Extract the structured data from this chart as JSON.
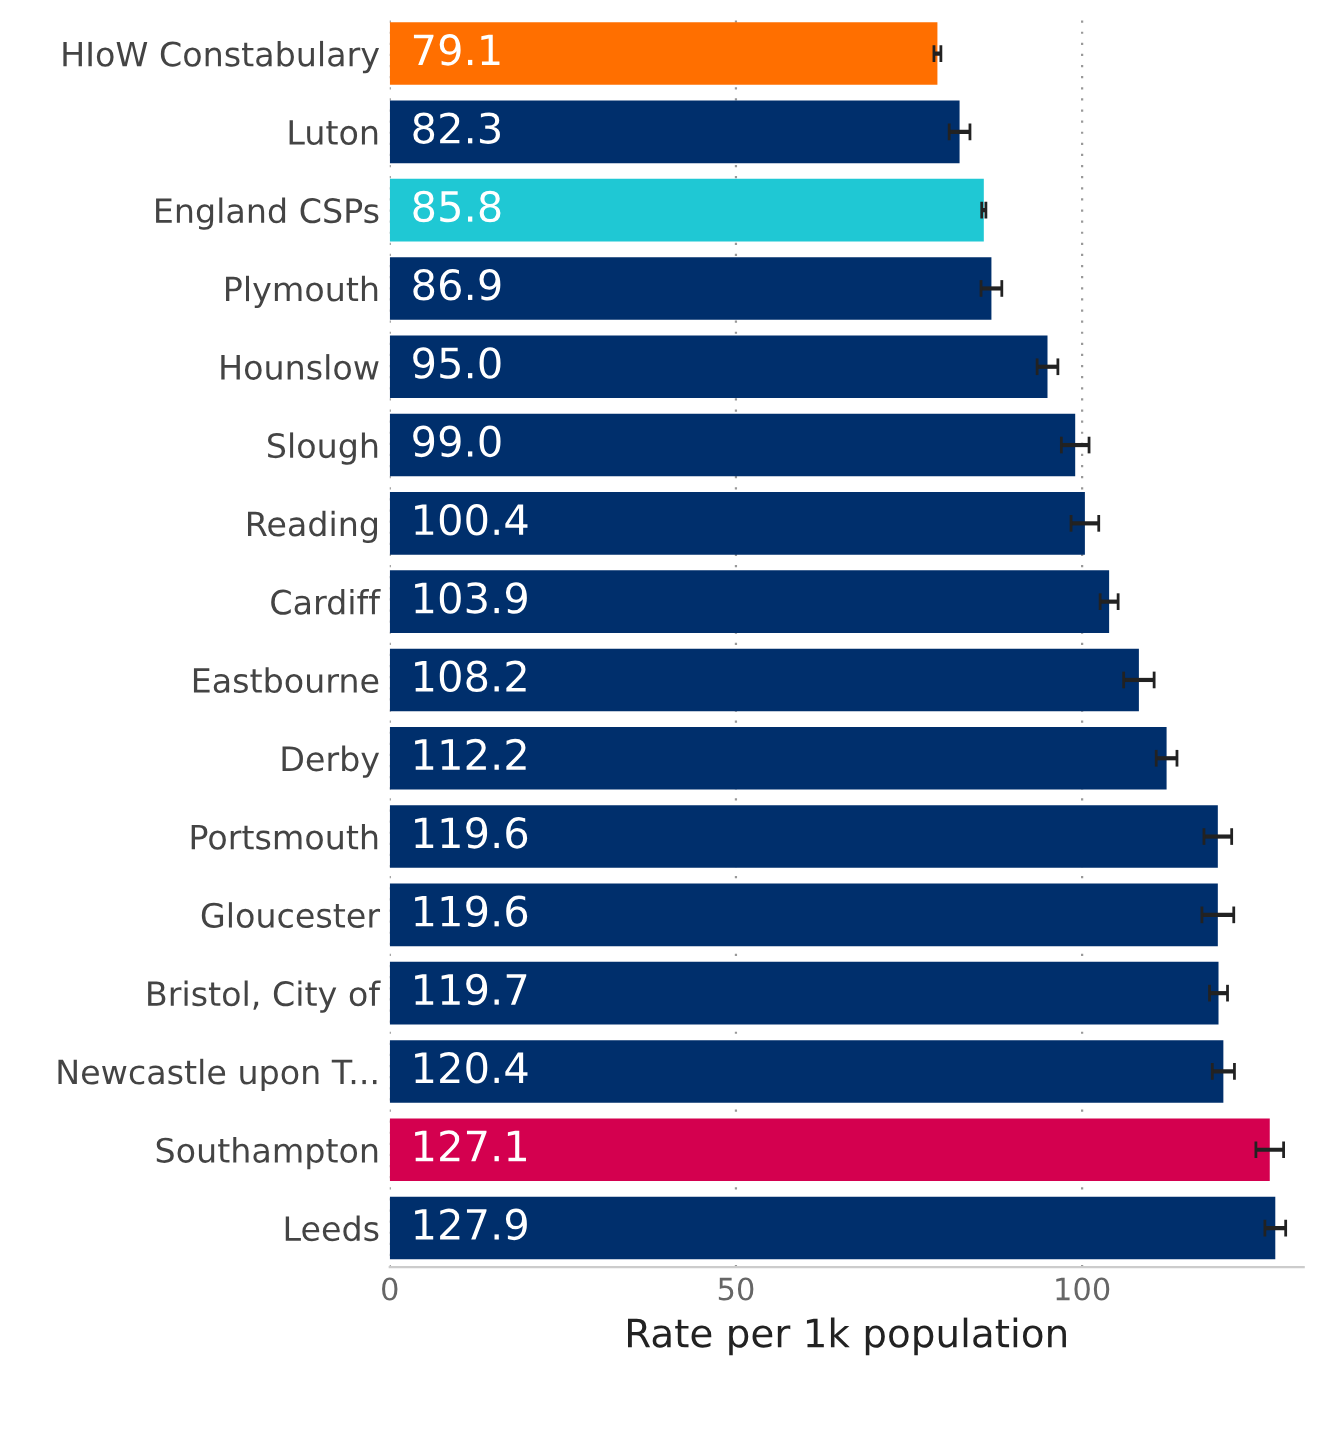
{
  "chart_data": {
    "type": "bar",
    "orientation": "horizontal",
    "xlabel": "Rate per 1k population",
    "categories": [
      "HIoW Constabulary",
      "Luton",
      "England CSPs",
      "Plymouth",
      "Hounslow",
      "Slough",
      "Reading",
      "Cardiff",
      "Eastbourne",
      "Derby",
      "Portsmouth",
      "Gloucester",
      "Bristol, City of",
      "Newcastle upon T...",
      "Southampton",
      "Leeds"
    ],
    "values": [
      79.1,
      82.3,
      85.8,
      86.9,
      95.0,
      99.0,
      100.4,
      103.9,
      108.2,
      112.2,
      119.6,
      119.6,
      119.7,
      120.4,
      127.1,
      127.9
    ],
    "colors": [
      "#ff6f00",
      "#002f6c",
      "#1fc8d4",
      "#002f6c",
      "#002f6c",
      "#002f6c",
      "#002f6c",
      "#002f6c",
      "#002f6c",
      "#002f6c",
      "#002f6c",
      "#002f6c",
      "#002f6c",
      "#002f6c",
      "#d4004f",
      "#002f6c"
    ],
    "errors": [
      0.5,
      1.5,
      0.3,
      1.5,
      1.5,
      2,
      2,
      1.3,
      2.2,
      1.5,
      2,
      2.3,
      1.3,
      1.6,
      2,
      1.5
    ],
    "value_labels": [
      "79.1",
      "82.3",
      "85.8",
      "86.9",
      "95.0",
      "99.0",
      "100.4",
      "103.9",
      "108.2",
      "112.2",
      "119.6",
      "119.6",
      "119.7",
      "120.4",
      "127.1",
      "127.9"
    ],
    "xlim": [
      0,
      132
    ],
    "xticks": [
      0,
      50,
      100
    ],
    "grid": "x"
  }
}
